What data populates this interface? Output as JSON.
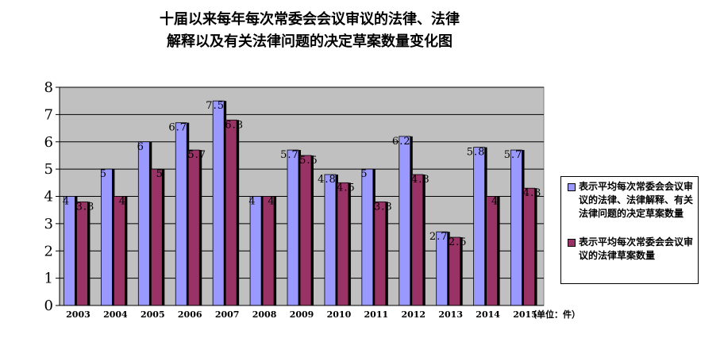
{
  "title_lines": [
    "十届以来每年每次常委会会议审议的法律、法律",
    "解释以及有关法律问题的决定草案数量变化图"
  ],
  "unit_note": "（单位：件）",
  "colors": {
    "plot_background": "#c0c0c0",
    "series_1": "#9999ff",
    "series_2": "#993366",
    "grid": "#000000"
  },
  "chart_data": {
    "type": "bar",
    "categories": [
      "2003",
      "2004",
      "2005",
      "2006",
      "2007",
      "2008",
      "2009",
      "2010",
      "2011",
      "2012",
      "2013",
      "2014",
      "2015"
    ],
    "series": [
      {
        "name": "表示平均每次常委会会议审议的法律、法律解释、有关法律问题的决定草案数量",
        "values": [
          4,
          5,
          6,
          6.7,
          7.5,
          4,
          5.7,
          4.8,
          5,
          6.2,
          2.7,
          5.8,
          5.7
        ],
        "labels": [
          "4",
          "5",
          "6",
          "6.7",
          "7.5",
          "4",
          "5.7",
          "4.8",
          "5",
          "6.2",
          "2.7",
          "5.8",
          "5.7"
        ]
      },
      {
        "name": "表示平均每次常委会会议审议的法律草案数量",
        "values": [
          3.8,
          4,
          5,
          5.7,
          6.8,
          4,
          5.5,
          4.5,
          3.8,
          4.8,
          2.5,
          4,
          4.3
        ],
        "labels": [
          "3.8",
          "4",
          "5",
          "5.7",
          "6.8",
          "4",
          "5.5",
          "4.5",
          "3.8",
          "4.8",
          "2.5",
          "4",
          "4.3"
        ]
      }
    ],
    "yticks": [
      "0",
      "1",
      "2",
      "3",
      "4",
      "5",
      "6",
      "7",
      "8"
    ],
    "ylim": [
      0,
      8
    ],
    "grid": true,
    "legend_position": "right"
  }
}
